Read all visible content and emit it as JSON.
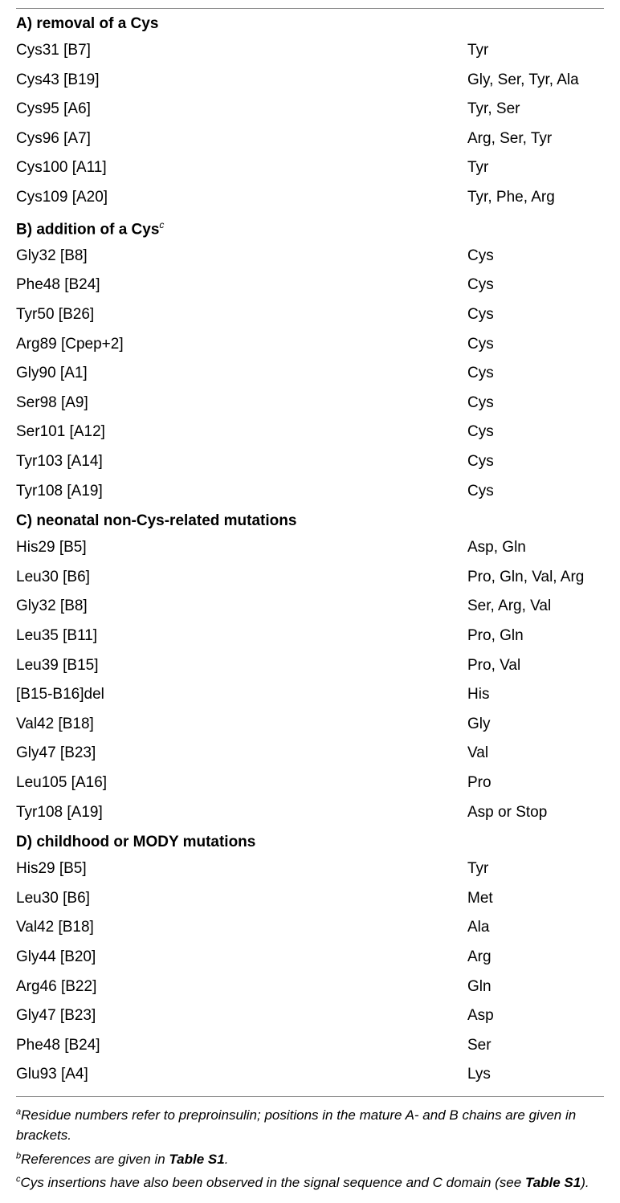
{
  "sections": {
    "a": {
      "title": "A) removal of a Cys",
      "sup": "",
      "rows": [
        {
          "left": "Cys31 [B7]",
          "right": "Tyr"
        },
        {
          "left": "Cys43 [B19]",
          "right": "Gly, Ser, Tyr, Ala"
        },
        {
          "left": "Cys95 [A6]",
          "right": "Tyr, Ser"
        },
        {
          "left": "Cys96 [A7]",
          "right": "Arg, Ser, Tyr"
        },
        {
          "left": "Cys100 [A11]",
          "right": "Tyr"
        },
        {
          "left": "Cys109 [A20]",
          "right": "Tyr, Phe, Arg"
        }
      ]
    },
    "b": {
      "title": "B) addition of a Cys",
      "sup": "c",
      "rows": [
        {
          "left": "Gly32 [B8]",
          "right": "Cys"
        },
        {
          "left": "Phe48 [B24]",
          "right": "Cys"
        },
        {
          "left": "Tyr50 [B26]",
          "right": "Cys"
        },
        {
          "left": "Arg89 [Cpep+2]",
          "right": "Cys"
        },
        {
          "left": "Gly90 [A1]",
          "right": "Cys"
        },
        {
          "left": "Ser98 [A9]",
          "right": "Cys"
        },
        {
          "left": "Ser101 [A12]",
          "right": "Cys"
        },
        {
          "left": "Tyr103 [A14]",
          "right": "Cys"
        },
        {
          "left": "Tyr108 [A19]",
          "right": "Cys"
        }
      ]
    },
    "c": {
      "title": "C) neonatal non-Cys-related mutations",
      "sup": "",
      "rows": [
        {
          "left": "His29 [B5]",
          "right": "Asp, Gln"
        },
        {
          "left": "Leu30 [B6]",
          "right": "Pro, Gln, Val, Arg"
        },
        {
          "left": "Gly32 [B8]",
          "right": "Ser, Arg, Val"
        },
        {
          "left": "Leu35 [B11]",
          "right": "Pro, Gln"
        },
        {
          "left": "Leu39 [B15]",
          "right": "Pro, Val"
        },
        {
          "left": "[B15-B16]del",
          "right": "His"
        },
        {
          "left": "Val42 [B18]",
          "right": "Gly"
        },
        {
          "left": "Gly47 [B23]",
          "right": "Val"
        },
        {
          "left": "Leu105 [A16]",
          "right": "Pro"
        },
        {
          "left": "Tyr108 [A19]",
          "right": "Asp or Stop"
        }
      ]
    },
    "d": {
      "title": "D) childhood or MODY mutations",
      "sup": "",
      "rows": [
        {
          "left": "His29 [B5]",
          "right": "Tyr"
        },
        {
          "left": "Leu30 [B6]",
          "right": "Met"
        },
        {
          "left": "Val42 [B18]",
          "right": "Ala"
        },
        {
          "left": "Gly44 [B20]",
          "right": "Arg"
        },
        {
          "left": "Arg46 [B22]",
          "right": "Gln"
        },
        {
          "left": "Gly47 [B23]",
          "right": "Asp"
        },
        {
          "left": "Phe48 [B24]",
          "right": "Ser"
        },
        {
          "left": "Glu93 [A4]",
          "right": "Lys"
        }
      ]
    }
  },
  "footnotes": {
    "a": {
      "sup": "a",
      "text_before": "Residue numbers refer to preproinsulin; positions in the mature A- and B chains are given in brackets.",
      "bold": "",
      "text_after": ""
    },
    "b": {
      "sup": "b",
      "text_before": "References are given in ",
      "bold": "Table S1",
      "text_after": "."
    },
    "c": {
      "sup": "c",
      "text_before": "Cys insertions have also been observed in the signal sequence and C domain (see ",
      "bold": "Table S1",
      "text_after": ")."
    }
  }
}
